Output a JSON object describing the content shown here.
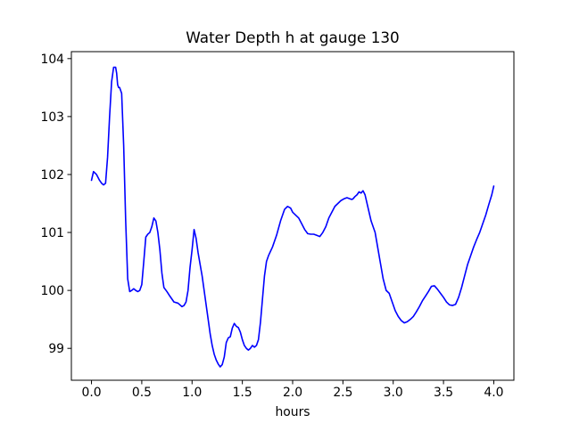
{
  "chart_data": {
    "type": "line",
    "title": "Water Depth h at gauge 130",
    "xlabel": "hours",
    "ylabel": "",
    "xlim": [
      -0.2,
      4.2
    ],
    "ylim": [
      98.45,
      104.12
    ],
    "xticks": [
      0.0,
      0.5,
      1.0,
      1.5,
      2.0,
      2.5,
      3.0,
      3.5,
      4.0
    ],
    "xtick_labels": [
      "0.0",
      "0.5",
      "1.0",
      "1.5",
      "2.0",
      "2.5",
      "3.0",
      "3.5",
      "4.0"
    ],
    "yticks": [
      99,
      100,
      101,
      102,
      103,
      104
    ],
    "ytick_labels": [
      "99",
      "100",
      "101",
      "102",
      "103",
      "104"
    ],
    "grid": false,
    "series": [
      {
        "color": "#0000ff",
        "x": [
          0.0,
          0.02,
          0.05,
          0.08,
          0.1,
          0.12,
          0.14,
          0.16,
          0.18,
          0.2,
          0.22,
          0.24,
          0.25,
          0.26,
          0.27,
          0.28,
          0.3,
          0.32,
          0.34,
          0.36,
          0.38,
          0.4,
          0.42,
          0.44,
          0.46,
          0.48,
          0.5,
          0.52,
          0.54,
          0.56,
          0.58,
          0.6,
          0.62,
          0.64,
          0.66,
          0.68,
          0.7,
          0.72,
          0.75,
          0.78,
          0.82,
          0.86,
          0.9,
          0.92,
          0.94,
          0.96,
          0.98,
          1.0,
          1.02,
          1.04,
          1.06,
          1.08,
          1.1,
          1.12,
          1.14,
          1.16,
          1.18,
          1.2,
          1.22,
          1.24,
          1.26,
          1.28,
          1.3,
          1.32,
          1.34,
          1.36,
          1.38,
          1.4,
          1.42,
          1.44,
          1.46,
          1.48,
          1.5,
          1.52,
          1.54,
          1.56,
          1.58,
          1.6,
          1.62,
          1.64,
          1.66,
          1.68,
          1.7,
          1.72,
          1.74,
          1.76,
          1.8,
          1.84,
          1.88,
          1.92,
          1.95,
          1.98,
          2.0,
          2.03,
          2.06,
          2.09,
          2.12,
          2.15,
          2.18,
          2.21,
          2.24,
          2.27,
          2.3,
          2.33,
          2.36,
          2.39,
          2.42,
          2.45,
          2.48,
          2.51,
          2.54,
          2.57,
          2.59,
          2.6,
          2.62,
          2.64,
          2.66,
          2.68,
          2.7,
          2.72,
          2.74,
          2.76,
          2.78,
          2.8,
          2.82,
          2.84,
          2.87,
          2.9,
          2.93,
          2.96,
          2.99,
          3.02,
          3.05,
          3.08,
          3.11,
          3.14,
          3.17,
          3.2,
          3.23,
          3.26,
          3.29,
          3.32,
          3.35,
          3.38,
          3.41,
          3.44,
          3.47,
          3.5,
          3.53,
          3.56,
          3.59,
          3.62,
          3.65,
          3.68,
          3.71,
          3.74,
          3.77,
          3.8,
          3.83,
          3.86,
          3.89,
          3.92,
          3.95,
          3.98,
          4.0
        ],
        "y": [
          101.9,
          102.05,
          102.0,
          101.9,
          101.85,
          101.82,
          101.85,
          102.3,
          103.0,
          103.6,
          103.85,
          103.85,
          103.75,
          103.55,
          103.5,
          103.5,
          103.4,
          102.5,
          101.2,
          100.2,
          99.98,
          100.0,
          100.03,
          100.0,
          99.98,
          100.0,
          100.1,
          100.5,
          100.92,
          100.97,
          101.0,
          101.1,
          101.25,
          101.2,
          101.0,
          100.7,
          100.3,
          100.05,
          99.98,
          99.9,
          99.8,
          99.78,
          99.72,
          99.74,
          99.8,
          100.0,
          100.4,
          100.7,
          101.05,
          100.9,
          100.65,
          100.45,
          100.25,
          100.0,
          99.75,
          99.5,
          99.25,
          99.05,
          98.9,
          98.8,
          98.73,
          98.68,
          98.72,
          98.85,
          99.1,
          99.18,
          99.2,
          99.35,
          99.43,
          99.38,
          99.36,
          99.28,
          99.15,
          99.05,
          99.0,
          98.97,
          99.0,
          99.05,
          99.02,
          99.05,
          99.15,
          99.45,
          99.85,
          100.25,
          100.5,
          100.6,
          100.75,
          100.95,
          101.2,
          101.4,
          101.45,
          101.42,
          101.35,
          101.3,
          101.25,
          101.15,
          101.05,
          100.98,
          100.97,
          100.97,
          100.95,
          100.93,
          101.0,
          101.1,
          101.25,
          101.35,
          101.45,
          101.5,
          101.55,
          101.58,
          101.6,
          101.58,
          101.57,
          101.58,
          101.62,
          101.65,
          101.7,
          101.68,
          101.72,
          101.65,
          101.5,
          101.35,
          101.2,
          101.1,
          101.0,
          100.8,
          100.5,
          100.2,
          100.0,
          99.95,
          99.8,
          99.65,
          99.55,
          99.48,
          99.44,
          99.46,
          99.5,
          99.55,
          99.63,
          99.72,
          99.82,
          99.9,
          99.98,
          100.07,
          100.08,
          100.02,
          99.95,
          99.88,
          99.8,
          99.75,
          99.74,
          99.76,
          99.88,
          100.05,
          100.25,
          100.45,
          100.6,
          100.75,
          100.88,
          101.0,
          101.15,
          101.3,
          101.48,
          101.65,
          101.8
        ]
      }
    ]
  }
}
